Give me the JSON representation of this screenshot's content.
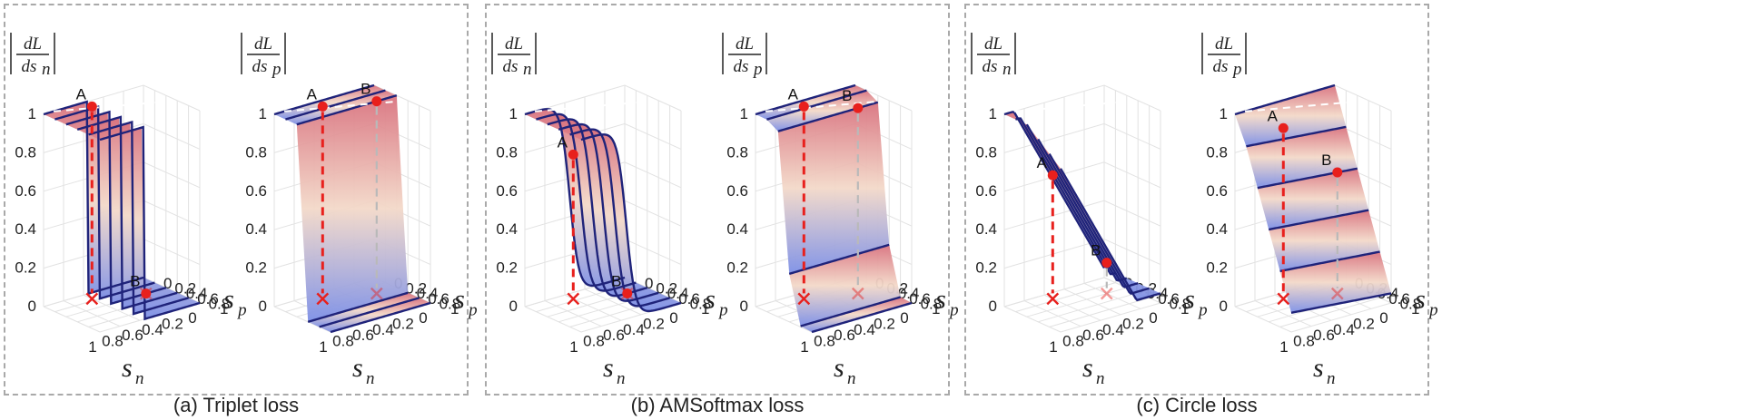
{
  "groups": [
    {
      "caption": "(a) Triplet loss"
    },
    {
      "caption": "(b) AMSoftmax loss"
    },
    {
      "caption": "(c) Circle loss"
    }
  ],
  "panels": [
    {
      "ylabel_num": "dL",
      "ylabel_den": "ds",
      "ylabel_sub": "n",
      "shape": "step",
      "point_a": "A",
      "point_b": "B"
    },
    {
      "ylabel_num": "dL",
      "ylabel_den": "ds",
      "ylabel_sub": "p",
      "shape": "step-p",
      "point_a": "A",
      "point_b": "B"
    },
    {
      "ylabel_num": "dL",
      "ylabel_den": "ds",
      "ylabel_sub": "n",
      "shape": "sigmoid",
      "point_a": "A",
      "point_b": "B"
    },
    {
      "ylabel_num": "dL",
      "ylabel_den": "ds",
      "ylabel_sub": "p",
      "shape": "sigmoid-p",
      "point_a": "A",
      "point_b": "B"
    },
    {
      "ylabel_num": "dL",
      "ylabel_den": "ds",
      "ylabel_sub": "n",
      "shape": "linear",
      "point_a": "A",
      "point_b": "B"
    },
    {
      "ylabel_num": "dL",
      "ylabel_den": "ds",
      "ylabel_sub": "p",
      "shape": "linear-p",
      "point_a": "A",
      "point_b": "B"
    }
  ],
  "z_ticks": [
    "0",
    "0.2",
    "0.4",
    "0.6",
    "0.8",
    "1"
  ],
  "sn_ticks": [
    "1",
    "0.8",
    "0.6",
    "0.4",
    "0.2",
    "0"
  ],
  "sp_ticks": [
    "0",
    "0.2",
    "0.4",
    "0.6",
    "0.8",
    "1"
  ],
  "x_axis_label": "s",
  "x_axis_sub": "n",
  "y_axis_label": "s",
  "y_axis_sub": "p",
  "colors": {
    "surface_top": "#d9737f",
    "surface_mid": "#f3d9c9",
    "surface_bottom": "#7c8fe6",
    "contour": "#1f237a",
    "point": "#e8201d",
    "dashed_red": "#e8201d",
    "frame": "#a9a9a9"
  }
}
